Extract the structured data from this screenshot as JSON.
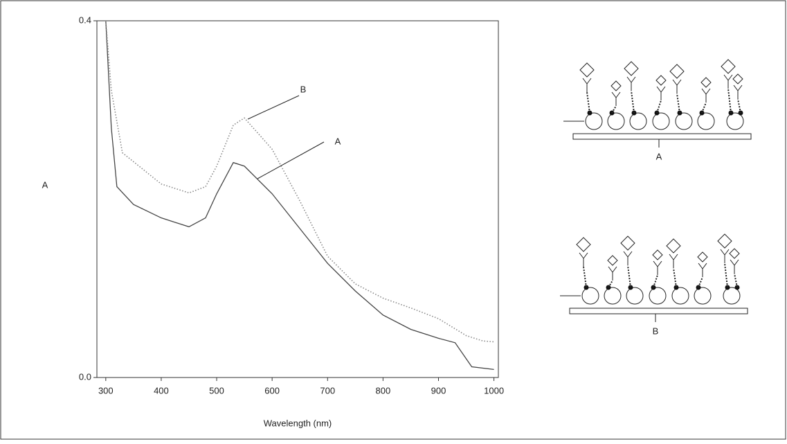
{
  "chart_data": {
    "type": "line",
    "xlabel": "Wavelength (nm)",
    "ylabel": "A",
    "xlim": [
      284,
      1008
    ],
    "ylim": [
      0,
      0.4
    ],
    "xticks": [
      300,
      400,
      500,
      600,
      700,
      800,
      900,
      1000
    ],
    "yticks": [
      {
        "value": 0,
        "label": "0.0"
      },
      0.4
    ],
    "series": [
      {
        "name": "A",
        "color": "#444444",
        "style": "solid",
        "x": [
          300,
          310,
          320,
          350,
          400,
          450,
          480,
          500,
          530,
          550,
          600,
          650,
          700,
          750,
          800,
          850,
          900,
          930,
          960,
          1000
        ],
        "values": [
          0.4,
          0.28,
          0.214,
          0.194,
          0.179,
          0.169,
          0.179,
          0.206,
          0.241,
          0.237,
          0.206,
          0.167,
          0.128,
          0.097,
          0.07,
          0.054,
          0.044,
          0.039,
          0.012,
          0.009
        ]
      },
      {
        "name": "B",
        "color": "#888888",
        "style": "dotted",
        "x": [
          300,
          310,
          330,
          400,
          450,
          480,
          500,
          530,
          550,
          600,
          650,
          700,
          750,
          800,
          850,
          900,
          950,
          980,
          1000
        ],
        "values": [
          0.4,
          0.322,
          0.252,
          0.217,
          0.207,
          0.214,
          0.237,
          0.283,
          0.291,
          0.256,
          0.198,
          0.136,
          0.105,
          0.089,
          0.078,
          0.066,
          0.047,
          0.041,
          0.04
        ]
      }
    ]
  },
  "diagrams": {
    "labels": [
      "A",
      "B"
    ]
  }
}
